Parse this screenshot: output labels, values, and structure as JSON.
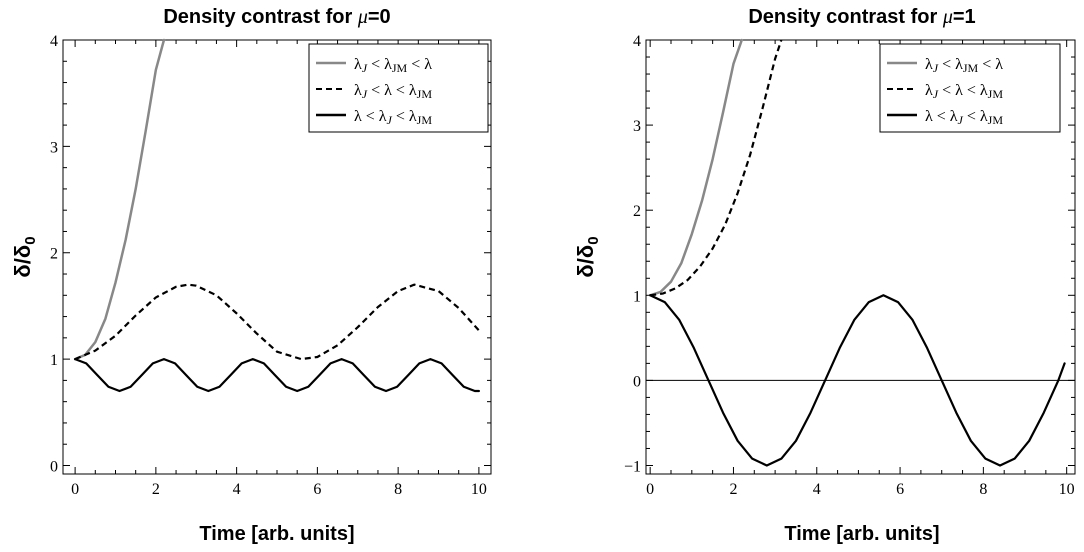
{
  "chart_data": [
    {
      "type": "line",
      "title": "Density contrast for μ=0",
      "title_prefix": "Density contrast for ",
      "title_symbol": "μ",
      "title_suffix": "=0",
      "xlabel": "Time [arb. units]",
      "ylabel": "δ/δ0",
      "xlim": [
        -0.3,
        10.3
      ],
      "ylim": [
        -0.08,
        4.0
      ],
      "xticks": [
        0,
        2,
        4,
        6,
        8,
        10
      ],
      "yticks": [
        0,
        1,
        2,
        3,
        4
      ],
      "grid": false,
      "legend_position": "top-right",
      "series": [
        {
          "name": "λJ < λJM < λ",
          "style": "solid",
          "color": "#888888",
          "x": [
            0,
            0.25,
            0.5,
            0.75,
            1.0,
            1.25,
            1.5,
            1.75,
            2.0,
            2.2
          ],
          "y": [
            1.0,
            1.04,
            1.16,
            1.38,
            1.72,
            2.12,
            2.6,
            3.15,
            3.72,
            4.0
          ]
        },
        {
          "name": "λJ < λ < λJM",
          "style": "dashed",
          "color": "#000000",
          "x": [
            0,
            0.5,
            1.0,
            1.5,
            2.0,
            2.5,
            2.8,
            3.0,
            3.5,
            4.0,
            4.5,
            5.0,
            5.6,
            6.0,
            6.5,
            7.0,
            7.5,
            8.0,
            8.4,
            9.0,
            9.5,
            10.0
          ],
          "y": [
            1.0,
            1.08,
            1.22,
            1.41,
            1.58,
            1.68,
            1.7,
            1.69,
            1.6,
            1.43,
            1.24,
            1.07,
            1.0,
            1.02,
            1.13,
            1.3,
            1.49,
            1.64,
            1.7,
            1.64,
            1.48,
            1.27
          ]
        },
        {
          "name": "λ < λJ < λJM",
          "style": "solid",
          "color": "#000000",
          "x": [
            0,
            0.275,
            0.55,
            0.825,
            1.1,
            1.375,
            1.65,
            1.925,
            2.2,
            2.475,
            2.75,
            3.025,
            3.3,
            3.575,
            3.85,
            4.125,
            4.4,
            4.675,
            4.95,
            5.225,
            5.5,
            5.775,
            6.05,
            6.325,
            6.6,
            6.875,
            7.15,
            7.425,
            7.7,
            7.975,
            8.25,
            8.525,
            8.8,
            9.075,
            9.35,
            9.625,
            9.9,
            10.0
          ],
          "y": [
            1.0,
            0.96,
            0.85,
            0.74,
            0.7,
            0.74,
            0.85,
            0.96,
            1.0,
            0.96,
            0.85,
            0.74,
            0.7,
            0.74,
            0.85,
            0.96,
            1.0,
            0.96,
            0.85,
            0.74,
            0.7,
            0.74,
            0.85,
            0.96,
            1.0,
            0.96,
            0.85,
            0.74,
            0.7,
            0.74,
            0.85,
            0.96,
            1.0,
            0.96,
            0.85,
            0.74,
            0.7,
            0.7
          ]
        }
      ]
    },
    {
      "type": "line",
      "title": "Density contrast for μ=1",
      "title_prefix": "Density contrast for ",
      "title_symbol": "μ",
      "title_suffix": "=1",
      "xlabel": "Time [arb. units]",
      "ylabel": "δ/δ0",
      "xlim": [
        -0.1,
        10.2
      ],
      "ylim": [
        -1.1,
        4.0
      ],
      "xticks": [
        0,
        2,
        4,
        6,
        8,
        10
      ],
      "yticks": [
        -1,
        0,
        1,
        2,
        3,
        4
      ],
      "ytick_labels": [
        "−1",
        "0",
        "1",
        "2",
        "3",
        "4"
      ],
      "grid": false,
      "zero_line": true,
      "legend_position": "top-right",
      "series": [
        {
          "name": "λJ < λJM < λ",
          "style": "solid",
          "color": "#888888",
          "x": [
            0,
            0.25,
            0.5,
            0.75,
            1.0,
            1.25,
            1.5,
            1.75,
            2.0,
            2.2
          ],
          "y": [
            1.0,
            1.04,
            1.16,
            1.38,
            1.72,
            2.12,
            2.6,
            3.15,
            3.72,
            4.0
          ]
        },
        {
          "name": "λJ < λ < λJM",
          "style": "dashed",
          "color": "#000000",
          "x": [
            0,
            0.3,
            0.6,
            0.9,
            1.2,
            1.5,
            1.8,
            2.1,
            2.4,
            2.7,
            3.0,
            3.15
          ],
          "y": [
            1.0,
            1.02,
            1.08,
            1.18,
            1.34,
            1.55,
            1.83,
            2.2,
            2.65,
            3.2,
            3.78,
            4.0
          ]
        },
        {
          "name": "λ < λJ < λJM",
          "style": "solid",
          "color": "#000000",
          "x": [
            0,
            0.35,
            0.7,
            1.05,
            1.4,
            1.75,
            2.1,
            2.45,
            2.8,
            3.15,
            3.5,
            3.85,
            4.2,
            4.55,
            4.9,
            5.25,
            5.6,
            5.95,
            6.3,
            6.65,
            7.0,
            7.35,
            7.7,
            8.05,
            8.4,
            8.75,
            9.1,
            9.45,
            9.8,
            9.95
          ],
          "y": [
            1.0,
            0.92,
            0.71,
            0.38,
            0.0,
            -0.38,
            -0.71,
            -0.92,
            -1.0,
            -0.92,
            -0.71,
            -0.38,
            0.0,
            0.38,
            0.71,
            0.92,
            1.0,
            0.92,
            0.71,
            0.38,
            0.0,
            -0.38,
            -0.71,
            -0.92,
            -1.0,
            -0.92,
            -0.71,
            -0.38,
            0.0,
            0.2
          ]
        }
      ]
    }
  ]
}
